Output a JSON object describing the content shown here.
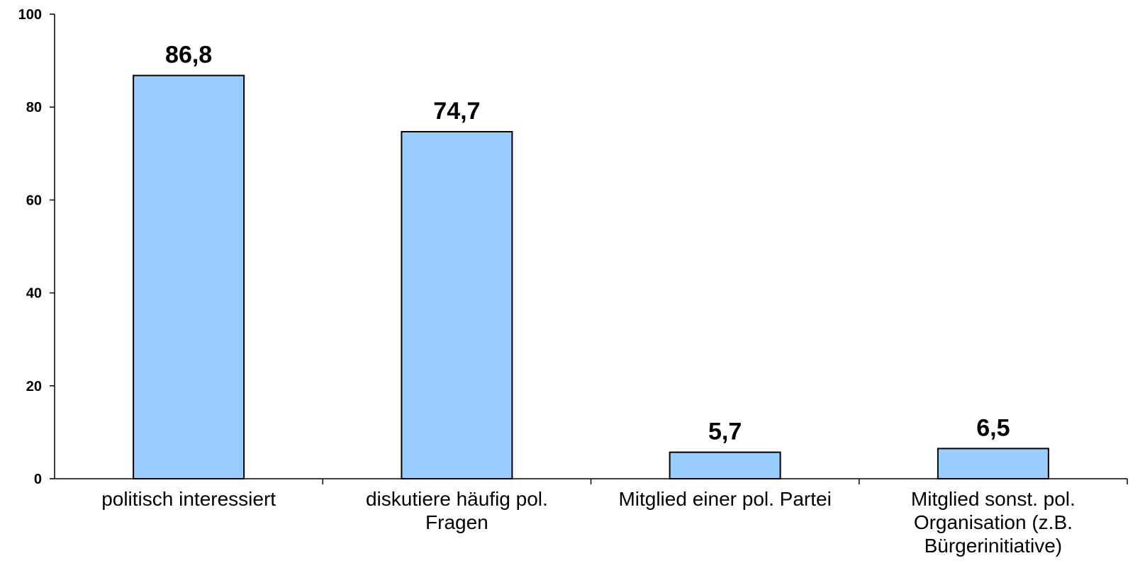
{
  "chart_data": {
    "type": "bar",
    "categories": [
      [
        "politisch interessiert"
      ],
      [
        "diskutiere häufig pol.",
        "Fragen"
      ],
      [
        "Mitglied einer pol. Partei"
      ],
      [
        "Mitglied sonst. pol.",
        "Organisation (z.B.",
        "Bürgerinitiative)"
      ]
    ],
    "values": [
      86.8,
      74.7,
      5.7,
      6.5
    ],
    "value_labels": [
      "86,8",
      "74,7",
      "5,7",
      "6,5"
    ],
    "ylim": [
      0,
      100
    ],
    "yticks": [
      0,
      20,
      40,
      60,
      80,
      100
    ],
    "ytick_labels": [
      "0",
      "20",
      "40",
      "60",
      "80",
      "100"
    ],
    "grid": false,
    "bar_color": "#99ccff",
    "bar_edge_color": "#000000"
  }
}
